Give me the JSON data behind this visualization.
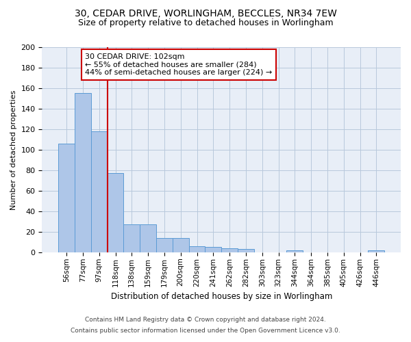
{
  "title_line1": "30, CEDAR DRIVE, WORLINGHAM, BECCLES, NR34 7EW",
  "title_line2": "Size of property relative to detached houses in Worlingham",
  "xlabel": "Distribution of detached houses by size in Worlingham",
  "ylabel": "Number of detached properties",
  "bins": [
    "56sqm",
    "77sqm",
    "97sqm",
    "118sqm",
    "138sqm",
    "159sqm",
    "179sqm",
    "200sqm",
    "220sqm",
    "241sqm",
    "262sqm",
    "282sqm",
    "303sqm",
    "323sqm",
    "344sqm",
    "364sqm",
    "385sqm",
    "405sqm",
    "426sqm",
    "446sqm"
  ],
  "values": [
    106,
    155,
    118,
    77,
    27,
    27,
    14,
    14,
    6,
    5,
    4,
    3,
    0,
    0,
    2,
    0,
    0,
    0,
    0,
    2
  ],
  "bar_color": "#aec6e8",
  "bar_edge_color": "#5b9bd5",
  "vline_color": "#cc0000",
  "vline_pos": 2.5,
  "annotation_text": "30 CEDAR DRIVE: 102sqm\n← 55% of detached houses are smaller (284)\n44% of semi-detached houses are larger (224) →",
  "annotation_box_color": "#ffffff",
  "annotation_box_edge": "#cc0000",
  "ylim": [
    0,
    200
  ],
  "yticks": [
    0,
    20,
    40,
    60,
    80,
    100,
    120,
    140,
    160,
    180,
    200
  ],
  "background_color": "#e8eef7",
  "footnote1": "Contains HM Land Registry data © Crown copyright and database right 2024.",
  "footnote2": "Contains public sector information licensed under the Open Government Licence v3.0."
}
